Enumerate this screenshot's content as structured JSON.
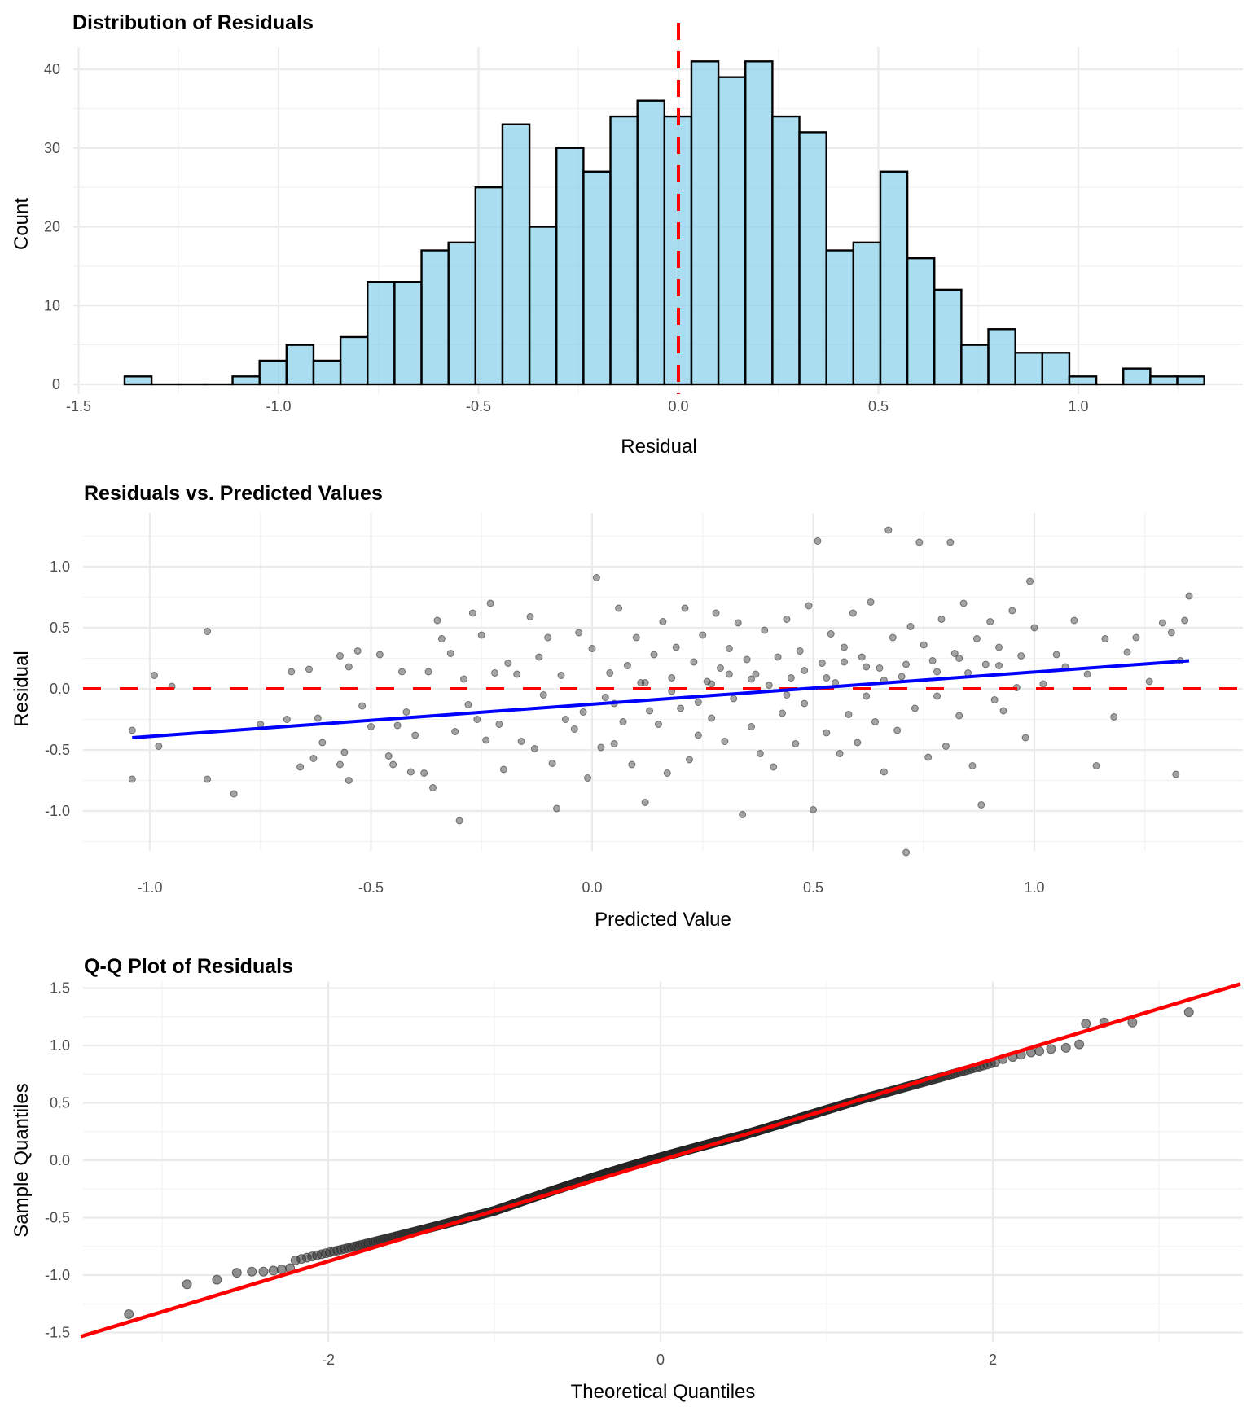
{
  "chart_data": [
    {
      "type": "bar",
      "subtype": "histogram",
      "title": "Distribution of Residuals",
      "xlabel": "Residual",
      "ylabel": "Count",
      "xlim": [
        -1.52,
        1.42
      ],
      "ylim": [
        -2,
        42.5
      ],
      "x_ticks": [
        -1.5,
        -1.0,
        -0.5,
        0.0,
        0.5,
        1.0
      ],
      "x_tick_labels": [
        "-1.5",
        "-1.0",
        "-0.5",
        "0.0",
        "0.5",
        "1.0"
      ],
      "y_ticks": [
        0,
        10,
        20,
        30,
        40
      ],
      "y_tick_labels": [
        "0",
        "10",
        "20",
        "30",
        "40"
      ],
      "bin_start": -1.385,
      "bin_width": 0.0675,
      "counts": [
        1,
        0,
        0,
        0,
        1,
        3,
        5,
        3,
        6,
        13,
        13,
        17,
        18,
        25,
        33,
        20,
        30,
        27,
        34,
        36,
        34,
        41,
        39,
        41,
        34,
        32,
        17,
        18,
        27,
        16,
        12,
        5,
        7,
        4,
        4,
        1,
        0,
        2,
        1,
        1
      ],
      "fill_color": "#87CEEB",
      "edge_color": "#000000",
      "reference_line": {
        "x": 0.0,
        "style": "dashed",
        "color": "#ff0000"
      },
      "grid": true
    },
    {
      "type": "scatter",
      "title": "Residuals vs. Predicted Values",
      "xlabel": "Predicted Value",
      "ylabel": "Residual",
      "xlim": [
        -1.15,
        1.47
      ],
      "ylim": [
        -1.45,
        1.45
      ],
      "x_ticks": [
        -1.0,
        -0.5,
        0.0,
        0.5,
        1.0
      ],
      "x_tick_labels": [
        "-1.0",
        "-0.5",
        "0.0",
        "0.5",
        "1.0"
      ],
      "y_ticks": [
        -1.0,
        -0.5,
        0.0,
        0.5,
        1.0
      ],
      "y_tick_labels": [
        "-1.0",
        "-0.5",
        "0.0",
        "0.5",
        "1.0"
      ],
      "point_color": "#333333",
      "point_alpha": 0.45,
      "reference_line": {
        "y": 0.0,
        "style": "dashed",
        "color": "#ff0000"
      },
      "fit_line": {
        "x": [
          -1.04,
          1.35
        ],
        "y": [
          -0.4,
          0.23
        ],
        "color": "#0000ff"
      },
      "grid": true,
      "points": [
        [
          -1.04,
          -0.34
        ],
        [
          -1.04,
          -0.74
        ],
        [
          -0.99,
          0.11
        ],
        [
          -0.98,
          -0.47
        ],
        [
          -0.95,
          0.02
        ],
        [
          -0.87,
          0.47
        ],
        [
          -0.87,
          -0.74
        ],
        [
          -0.81,
          -0.86
        ],
        [
          -0.75,
          -0.29
        ],
        [
          -0.69,
          -0.25
        ],
        [
          -0.68,
          0.14
        ],
        [
          -0.66,
          -0.64
        ],
        [
          -0.64,
          0.16
        ],
        [
          -0.63,
          -0.57
        ],
        [
          -0.61,
          -0.44
        ],
        [
          -0.62,
          -0.24
        ],
        [
          -0.57,
          0.27
        ],
        [
          -0.57,
          -0.62
        ],
        [
          -0.56,
          -0.52
        ],
        [
          -0.55,
          -0.75
        ],
        [
          -0.55,
          0.18
        ],
        [
          -0.53,
          0.31
        ],
        [
          -0.52,
          -0.14
        ],
        [
          -0.5,
          -0.31
        ],
        [
          -0.48,
          0.28
        ],
        [
          -0.46,
          -0.55
        ],
        [
          -0.45,
          -0.62
        ],
        [
          -0.44,
          -0.3
        ],
        [
          -0.43,
          0.14
        ],
        [
          -0.42,
          -0.19
        ],
        [
          -0.41,
          -0.68
        ],
        [
          -0.4,
          -0.38
        ],
        [
          -0.38,
          -0.69
        ],
        [
          -0.37,
          0.14
        ],
        [
          -0.36,
          -0.81
        ],
        [
          -0.35,
          0.56
        ],
        [
          -0.34,
          0.41
        ],
        [
          -0.32,
          0.29
        ],
        [
          -0.31,
          -0.35
        ],
        [
          -0.3,
          -1.08
        ],
        [
          -0.29,
          0.08
        ],
        [
          -0.28,
          -0.13
        ],
        [
          -0.27,
          0.62
        ],
        [
          -0.26,
          -0.25
        ],
        [
          -0.25,
          0.44
        ],
        [
          -0.24,
          -0.42
        ],
        [
          -0.23,
          0.7
        ],
        [
          -0.22,
          0.13
        ],
        [
          -0.21,
          -0.29
        ],
        [
          -0.2,
          -0.66
        ],
        [
          -0.19,
          0.21
        ],
        [
          -0.17,
          0.12
        ],
        [
          -0.16,
          -0.43
        ],
        [
          -0.14,
          0.59
        ],
        [
          -0.13,
          -0.49
        ],
        [
          -0.12,
          0.26
        ],
        [
          -0.11,
          -0.05
        ],
        [
          -0.1,
          0.42
        ],
        [
          -0.09,
          -0.61
        ],
        [
          -0.08,
          -0.98
        ],
        [
          -0.07,
          0.11
        ],
        [
          -0.06,
          -0.25
        ],
        [
          -0.04,
          -0.33
        ],
        [
          -0.03,
          0.46
        ],
        [
          -0.02,
          -0.19
        ],
        [
          -0.01,
          -0.73
        ],
        [
          0.0,
          0.33
        ],
        [
          0.01,
          0.91
        ],
        [
          0.02,
          -0.48
        ],
        [
          0.03,
          -0.07
        ],
        [
          0.04,
          0.13
        ],
        [
          0.05,
          -0.45
        ],
        [
          0.06,
          0.66
        ],
        [
          0.07,
          -0.27
        ],
        [
          0.08,
          0.19
        ],
        [
          0.09,
          -0.62
        ],
        [
          0.1,
          0.42
        ],
        [
          0.11,
          0.05
        ],
        [
          0.12,
          -0.93
        ],
        [
          0.13,
          -0.18
        ],
        [
          0.14,
          0.28
        ],
        [
          0.15,
          -0.29
        ],
        [
          0.16,
          0.55
        ],
        [
          0.17,
          -0.69
        ],
        [
          0.18,
          0.09
        ],
        [
          0.19,
          0.34
        ],
        [
          0.2,
          -0.16
        ],
        [
          0.21,
          0.66
        ],
        [
          0.22,
          -0.58
        ],
        [
          0.23,
          0.22
        ],
        [
          0.24,
          -0.38
        ],
        [
          0.25,
          0.44
        ],
        [
          0.26,
          0.06
        ],
        [
          0.27,
          -0.24
        ],
        [
          0.28,
          0.62
        ],
        [
          0.29,
          0.17
        ],
        [
          0.3,
          -0.43
        ],
        [
          0.31,
          0.33
        ],
        [
          0.32,
          -0.08
        ],
        [
          0.33,
          0.54
        ],
        [
          0.34,
          -1.03
        ],
        [
          0.35,
          0.24
        ],
        [
          0.36,
          -0.31
        ],
        [
          0.37,
          0.12
        ],
        [
          0.38,
          -0.53
        ],
        [
          0.39,
          0.48
        ],
        [
          0.4,
          0.03
        ],
        [
          0.41,
          -0.64
        ],
        [
          0.42,
          0.26
        ],
        [
          0.43,
          -0.2
        ],
        [
          0.44,
          0.57
        ],
        [
          0.45,
          0.09
        ],
        [
          0.46,
          -0.45
        ],
        [
          0.47,
          0.31
        ],
        [
          0.48,
          -0.12
        ],
        [
          0.49,
          0.68
        ],
        [
          0.5,
          -0.99
        ],
        [
          0.51,
          1.21
        ],
        [
          0.52,
          0.21
        ],
        [
          0.53,
          -0.36
        ],
        [
          0.54,
          0.45
        ],
        [
          0.55,
          0.05
        ],
        [
          0.56,
          -0.53
        ],
        [
          0.57,
          0.34
        ],
        [
          0.58,
          -0.21
        ],
        [
          0.59,
          0.62
        ],
        [
          0.6,
          -0.44
        ],
        [
          0.61,
          0.26
        ],
        [
          0.62,
          -0.06
        ],
        [
          0.63,
          0.71
        ],
        [
          0.64,
          -0.27
        ],
        [
          0.65,
          0.17
        ],
        [
          0.66,
          -0.68
        ],
        [
          0.67,
          1.3
        ],
        [
          0.68,
          0.42
        ],
        [
          0.69,
          -0.34
        ],
        [
          0.7,
          0.1
        ],
        [
          0.71,
          -1.34
        ],
        [
          0.72,
          0.51
        ],
        [
          0.73,
          -0.16
        ],
        [
          0.74,
          1.2
        ],
        [
          0.75,
          0.36
        ],
        [
          0.76,
          -0.56
        ],
        [
          0.77,
          0.23
        ],
        [
          0.78,
          -0.06
        ],
        [
          0.79,
          0.57
        ],
        [
          0.8,
          -0.47
        ],
        [
          0.81,
          1.2
        ],
        [
          0.82,
          0.29
        ],
        [
          0.83,
          -0.22
        ],
        [
          0.84,
          0.7
        ],
        [
          0.85,
          0.13
        ],
        [
          0.86,
          -0.63
        ],
        [
          0.87,
          0.41
        ],
        [
          0.88,
          -0.95
        ],
        [
          0.89,
          0.2
        ],
        [
          0.9,
          0.55
        ],
        [
          0.91,
          -0.09
        ],
        [
          0.92,
          0.34
        ],
        [
          0.93,
          -0.18
        ],
        [
          0.95,
          0.64
        ],
        [
          0.96,
          0.01
        ],
        [
          0.97,
          0.27
        ],
        [
          0.98,
          -0.4
        ],
        [
          0.99,
          0.88
        ],
        [
          1.0,
          0.5
        ],
        [
          1.02,
          0.04
        ],
        [
          1.05,
          0.28
        ],
        [
          1.07,
          0.18
        ],
        [
          1.09,
          0.56
        ],
        [
          1.12,
          0.12
        ],
        [
          1.14,
          -0.63
        ],
        [
          1.16,
          0.41
        ],
        [
          1.18,
          -0.23
        ],
        [
          1.21,
          0.3
        ],
        [
          1.23,
          0.42
        ],
        [
          1.26,
          0.06
        ],
        [
          1.29,
          0.54
        ],
        [
          1.31,
          0.46
        ],
        [
          1.32,
          -0.7
        ],
        [
          1.33,
          0.23
        ],
        [
          1.34,
          0.56
        ],
        [
          1.35,
          0.76
        ],
        [
          0.24,
          -0.11
        ],
        [
          0.31,
          0.12
        ],
        [
          0.44,
          -0.05
        ],
        [
          0.53,
          0.09
        ],
        [
          0.62,
          0.18
        ],
        [
          0.71,
          0.2
        ],
        [
          0.78,
          0.14
        ],
        [
          0.18,
          -0.02
        ],
        [
          0.27,
          0.04
        ],
        [
          0.36,
          0.08
        ],
        [
          0.48,
          0.15
        ],
        [
          0.57,
          0.22
        ],
        [
          0.66,
          0.07
        ],
        [
          0.83,
          0.25
        ],
        [
          0.92,
          0.19
        ],
        [
          0.12,
          0.05
        ],
        [
          0.05,
          -0.12
        ]
      ]
    },
    {
      "type": "scatter",
      "subtype": "qq",
      "title": "Q-Q Plot of Residuals",
      "xlabel": "Theoretical Quantiles",
      "ylabel": "Sample Quantiles",
      "xlim": [
        -3.49,
        3.49
      ],
      "ylim": [
        -1.55,
        1.55
      ],
      "x_ticks": [
        -2,
        0,
        2
      ],
      "x_tick_labels": [
        "-2",
        "0",
        "2"
      ],
      "y_ticks": [
        -1.5,
        -1.0,
        -0.5,
        0.0,
        0.5,
        1.0,
        1.5
      ],
      "y_tick_labels": [
        "-1.5",
        "-1.0",
        "-0.5",
        "0.0",
        "0.5",
        "1.0",
        "1.5"
      ],
      "point_color": "#333333",
      "point_alpha": 0.55,
      "reference_line": {
        "slope": 0.44,
        "intercept": 0.0,
        "color": "#ff0000"
      },
      "n_points": 750,
      "tail_points": [
        [
          -3.2,
          -1.34
        ],
        [
          -2.85,
          -1.08
        ],
        [
          -2.67,
          -1.04
        ],
        [
          -2.55,
          -0.98
        ],
        [
          -2.46,
          -0.97
        ],
        [
          -2.39,
          -0.97
        ],
        [
          -2.33,
          -0.96
        ],
        [
          -2.28,
          -0.95
        ],
        [
          -2.23,
          -0.94
        ],
        [
          2.06,
          0.88
        ],
        [
          2.12,
          0.9
        ],
        [
          2.17,
          0.92
        ],
        [
          2.23,
          0.94
        ],
        [
          2.28,
          0.95
        ],
        [
          2.35,
          0.97
        ],
        [
          2.44,
          0.98
        ],
        [
          2.52,
          1.01
        ],
        [
          2.56,
          1.19
        ],
        [
          2.67,
          1.2
        ],
        [
          2.84,
          1.2
        ],
        [
          3.18,
          1.29
        ]
      ],
      "grid": true
    }
  ]
}
